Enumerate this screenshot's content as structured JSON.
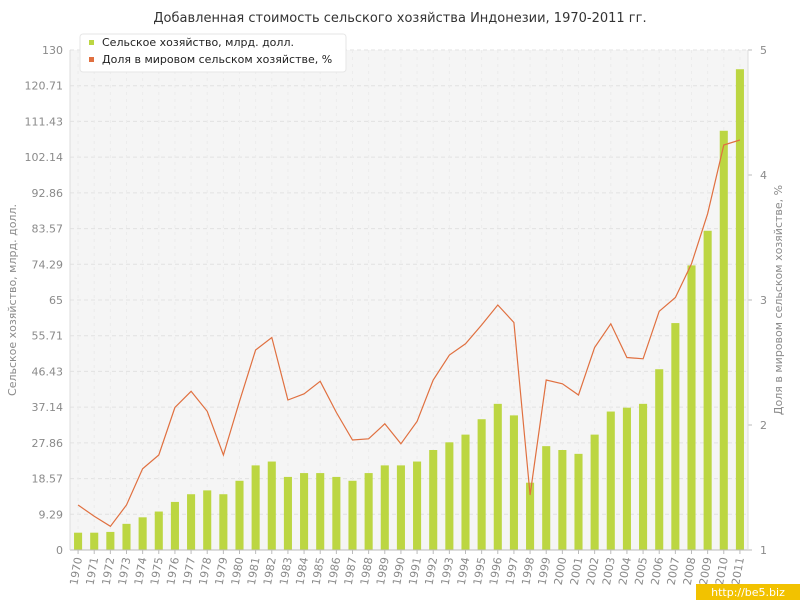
{
  "chart_data": {
    "type": "bar",
    "title": "Добавленная стоимость сельского хозяйства Индонезии, 1970-2011 гг.",
    "categories": [
      "1970",
      "1971",
      "1972",
      "1973",
      "1974",
      "1975",
      "1976",
      "1977",
      "1978",
      "1979",
      "1980",
      "1981",
      "1982",
      "1983",
      "1984",
      "1985",
      "1986",
      "1987",
      "1988",
      "1989",
      "1990",
      "1991",
      "1992",
      "1993",
      "1994",
      "1995",
      "1996",
      "1997",
      "1998",
      "1999",
      "2000",
      "2001",
      "2002",
      "2003",
      "2004",
      "2005",
      "2006",
      "2007",
      "2008",
      "2009",
      "2010",
      "2011"
    ],
    "series": [
      {
        "name": "Сельское хозяйство, млрд. долл.",
        "type": "bar",
        "axis": "left",
        "color": "#bcd642",
        "values": [
          4.5,
          4.5,
          4.7,
          6.8,
          8.5,
          10,
          12.5,
          14.5,
          15.5,
          14.5,
          18,
          22,
          23,
          19,
          20,
          20,
          19,
          18,
          20,
          22,
          22,
          23,
          26,
          28,
          30,
          34,
          38,
          35,
          17.5,
          27,
          26,
          25,
          30,
          36,
          37,
          38,
          47,
          59,
          74,
          83,
          109,
          125
        ]
      },
      {
        "name": "Доля в мировом сельском хозяйстве, %",
        "type": "line",
        "axis": "right",
        "color": "#e07040",
        "values": [
          1.36,
          1.27,
          1.19,
          1.36,
          1.65,
          1.76,
          2.14,
          2.27,
          2.11,
          1.76,
          2.19,
          2.6,
          2.7,
          2.2,
          2.25,
          2.35,
          2.1,
          1.88,
          1.89,
          2.01,
          1.85,
          2.03,
          2.36,
          2.56,
          2.65,
          2.8,
          2.96,
          2.82,
          1.44,
          2.36,
          2.33,
          2.24,
          2.62,
          2.81,
          2.54,
          2.53,
          2.91,
          3.02,
          3.29,
          3.69,
          4.24,
          4.28
        ]
      }
    ],
    "y_left": {
      "label": "Сельское хозяйство, млрд. долл.",
      "min": 0,
      "max": 130,
      "ticks": [
        "0",
        "9.29",
        "18.57",
        "27.86",
        "37.14",
        "46.43",
        "55.71",
        "65",
        "74.29",
        "83.57",
        "92.86",
        "102.14",
        "111.43",
        "120.71",
        "130"
      ]
    },
    "y_right": {
      "label": "Доля в мировом сельском хозяйстве, %",
      "min": 1,
      "max": 5,
      "ticks": [
        "1",
        "2",
        "3",
        "4",
        "5"
      ]
    },
    "legend_position": "top-left",
    "grid": true
  },
  "watermark": "http://be5.biz"
}
